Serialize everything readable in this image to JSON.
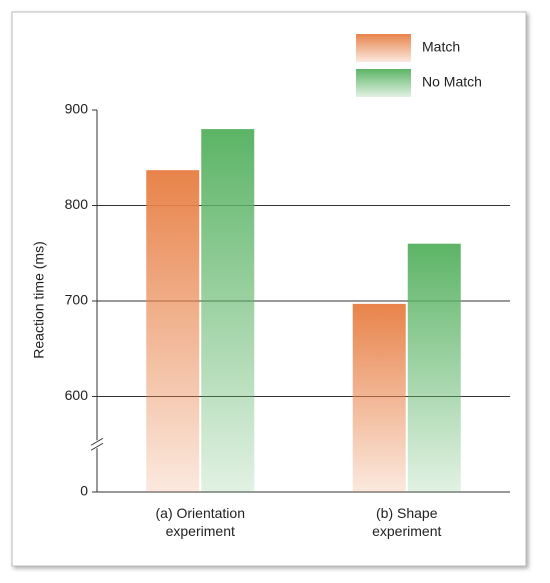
{
  "chart_data": {
    "type": "bar",
    "categories": [
      "(a) Orientation\nexperiment",
      "(b) Shape\nexperiment"
    ],
    "series": [
      {
        "name": "Match",
        "color": "#e8834a",
        "values": [
          837,
          697
        ]
      },
      {
        "name": "No Match",
        "color": "#5cb466",
        "values": [
          880,
          760
        ]
      }
    ],
    "y_label": "Reaction time (ms)",
    "ylim": [
      0,
      900
    ],
    "yticks": [
      0,
      600,
      700,
      800,
      900
    ],
    "axis_break": true,
    "grid": true,
    "legend": "top-right"
  }
}
